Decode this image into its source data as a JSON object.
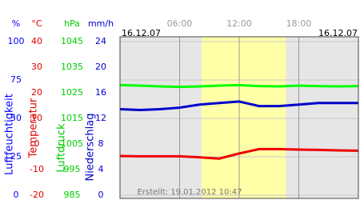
{
  "chart_data": {
    "type": "line",
    "dates": [
      "16.12.07",
      "16.12.07"
    ],
    "footer": "Erstellt: 19.01.2012 10:47",
    "xlim": [
      0,
      24
    ],
    "xticks": [
      {
        "value": 6,
        "label": "06:00"
      },
      {
        "value": 12,
        "label": "12:00"
      },
      {
        "value": 18,
        "label": "18:00"
      }
    ],
    "daylight": [
      8.2,
      16.7
    ],
    "axes": [
      {
        "unit": "%",
        "title": "Luftfeuchtigkeit",
        "color": "#0000ff",
        "lim": [
          0,
          100
        ],
        "ticks": [
          0,
          25,
          50,
          75,
          100
        ]
      },
      {
        "unit": "°C",
        "title": "Temperatur",
        "color": "#e00000",
        "lim": [
          -20,
          40
        ],
        "ticks": [
          -20,
          -10,
          0,
          10,
          20,
          30,
          40
        ]
      },
      {
        "unit": "hPa",
        "title": "Luftdruck",
        "color": "#00cc00",
        "lim": [
          985,
          1045
        ],
        "ticks": [
          985,
          995,
          1005,
          1015,
          1025,
          1035,
          1045
        ]
      },
      {
        "unit": "mm/h",
        "title": "Niederschlag",
        "color": "#0000cc",
        "lim": [
          0,
          24
        ],
        "ticks": [
          0,
          4,
          8,
          12,
          16,
          20,
          24
        ]
      }
    ],
    "x": [
      0,
      2,
      4,
      6,
      8,
      10,
      12,
      14,
      16,
      18,
      20,
      22,
      24
    ],
    "series": [
      {
        "axis": 2,
        "color": "#00ff00",
        "values": [
          1028,
          1027.8,
          1027.5,
          1027.3,
          1027.5,
          1027.8,
          1028,
          1027.6,
          1027.5,
          1027.8,
          1027.6,
          1027.5,
          1027.6
        ]
      },
      {
        "axis": 0,
        "color": "#0000cc",
        "values": [
          56,
          55.5,
          56,
          57,
          59,
          60,
          61,
          58,
          58,
          59,
          60,
          60,
          60
        ]
      },
      {
        "axis": 1,
        "color": "#ee0000",
        "values": [
          -4.7,
          -4.8,
          -4.8,
          -4.8,
          -5.2,
          -5.7,
          -3.7,
          -2,
          -2,
          -2.2,
          -2.3,
          -2.5,
          -2.6
        ]
      }
    ]
  }
}
